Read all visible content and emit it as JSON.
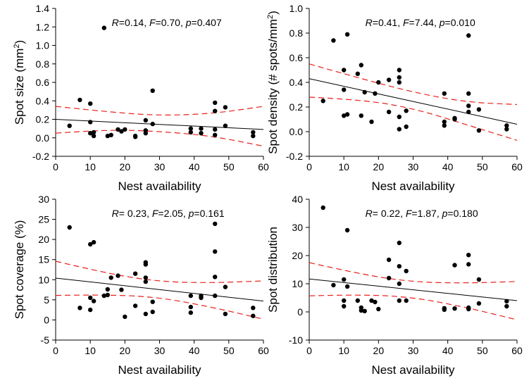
{
  "chart_data": [
    {
      "type": "scatter",
      "xlabel": "Nest availability",
      "ylabel": "Spot size (mm²)",
      "stats": "R=0.14, F=0.70, p=0.407",
      "xlim": [
        0,
        60
      ],
      "ylim": [
        -0.2,
        1.4
      ],
      "xticks": [
        0,
        10,
        20,
        30,
        40,
        50,
        60
      ],
      "yticks": [
        -0.2,
        0.0,
        0.2,
        0.4,
        0.6,
        0.8,
        1.0,
        1.2,
        1.4
      ],
      "ytick_labels": [
        "-0.2",
        "0.0",
        "0.2",
        "0.4",
        "0.6",
        "0.8",
        "1.0",
        "1.2",
        "1.4"
      ],
      "points": [
        {
          "x": 4,
          "y": 0.13
        },
        {
          "x": 7,
          "y": 0.41
        },
        {
          "x": 10,
          "y": 0.37
        },
        {
          "x": 10,
          "y": 0.17
        },
        {
          "x": 10,
          "y": 0.05
        },
        {
          "x": 11,
          "y": 0.02
        },
        {
          "x": 11,
          "y": 0.06
        },
        {
          "x": 14,
          "y": 1.19
        },
        {
          "x": 15,
          "y": 0.02
        },
        {
          "x": 16,
          "y": 0.03
        },
        {
          "x": 18,
          "y": 0.09
        },
        {
          "x": 19,
          "y": 0.07
        },
        {
          "x": 20,
          "y": 0.09
        },
        {
          "x": 23,
          "y": 0.02
        },
        {
          "x": 23,
          "y": 0.01
        },
        {
          "x": 26,
          "y": 0.19
        },
        {
          "x": 26,
          "y": 0.08
        },
        {
          "x": 26,
          "y": 0.05
        },
        {
          "x": 28,
          "y": 0.15
        },
        {
          "x": 28,
          "y": 0.51
        },
        {
          "x": 39,
          "y": 0.1
        },
        {
          "x": 39,
          "y": 0.06
        },
        {
          "x": 42,
          "y": 0.1
        },
        {
          "x": 42,
          "y": 0.05
        },
        {
          "x": 46,
          "y": 0.38
        },
        {
          "x": 46,
          "y": 0.29
        },
        {
          "x": 46,
          "y": 0.09
        },
        {
          "x": 46,
          "y": 0.03
        },
        {
          "x": 49,
          "y": 0.33
        },
        {
          "x": 49,
          "y": 0.13
        },
        {
          "x": 57,
          "y": 0.06
        },
        {
          "x": 57,
          "y": 0.02
        }
      ],
      "fit": [
        [
          0,
          0.2
        ],
        [
          60,
          0.09
        ]
      ],
      "ci_upper": [
        [
          0,
          0.34
        ],
        [
          15,
          0.28
        ],
        [
          30,
          0.24
        ],
        [
          45,
          0.26
        ],
        [
          60,
          0.34
        ]
      ],
      "ci_lower": [
        [
          0,
          0.05
        ],
        [
          15,
          0.09
        ],
        [
          30,
          0.07
        ],
        [
          45,
          0.02
        ],
        [
          60,
          -0.09
        ]
      ]
    },
    {
      "type": "scatter",
      "xlabel": "Nest availability",
      "ylabel": "Spot density (# spots/mm²)",
      "stats": "R=0.41, F=7.44, p=0.010",
      "xlim": [
        0,
        60
      ],
      "ylim": [
        -0.2,
        1.0
      ],
      "xticks": [
        0,
        10,
        20,
        30,
        40,
        50,
        60
      ],
      "yticks": [
        -0.2,
        0.0,
        0.2,
        0.4,
        0.6,
        0.8,
        1.0
      ],
      "ytick_labels": [
        "-0.2",
        "0.0",
        "0.2",
        "0.4",
        "0.6",
        "0.8",
        "1.0"
      ],
      "points": [
        {
          "x": 4,
          "y": 0.25
        },
        {
          "x": 7,
          "y": 0.74
        },
        {
          "x": 10,
          "y": 0.5
        },
        {
          "x": 10,
          "y": 0.34
        },
        {
          "x": 10,
          "y": 0.13
        },
        {
          "x": 11,
          "y": 0.79
        },
        {
          "x": 11,
          "y": 0.14
        },
        {
          "x": 14,
          "y": 0.47
        },
        {
          "x": 15,
          "y": 0.54
        },
        {
          "x": 15,
          "y": 0.13
        },
        {
          "x": 16,
          "y": 0.32
        },
        {
          "x": 18,
          "y": 0.08
        },
        {
          "x": 19,
          "y": 0.31
        },
        {
          "x": 20,
          "y": 0.4
        },
        {
          "x": 23,
          "y": 0.16
        },
        {
          "x": 23,
          "y": 0.42
        },
        {
          "x": 26,
          "y": 0.5
        },
        {
          "x": 26,
          "y": 0.44
        },
        {
          "x": 26,
          "y": 0.4
        },
        {
          "x": 26,
          "y": 0.12
        },
        {
          "x": 26,
          "y": 0.02
        },
        {
          "x": 28,
          "y": 0.17
        },
        {
          "x": 28,
          "y": 0.04
        },
        {
          "x": 39,
          "y": 0.31
        },
        {
          "x": 39,
          "y": 0.08
        },
        {
          "x": 39,
          "y": 0.05
        },
        {
          "x": 42,
          "y": 0.11
        },
        {
          "x": 42,
          "y": 0.1
        },
        {
          "x": 46,
          "y": 0.78
        },
        {
          "x": 46,
          "y": 0.31
        },
        {
          "x": 46,
          "y": 0.21
        },
        {
          "x": 46,
          "y": 0.16
        },
        {
          "x": 49,
          "y": 0.01
        },
        {
          "x": 49,
          "y": 0.18
        },
        {
          "x": 57,
          "y": 0.05
        },
        {
          "x": 57,
          "y": 0.02
        }
      ],
      "fit": [
        [
          0,
          0.43
        ],
        [
          60,
          0.06
        ]
      ],
      "ci_upper": [
        [
          0,
          0.55
        ],
        [
          15,
          0.43
        ],
        [
          30,
          0.32
        ],
        [
          45,
          0.24
        ],
        [
          60,
          0.22
        ]
      ],
      "ci_lower": [
        [
          0,
          0.28
        ],
        [
          15,
          0.26
        ],
        [
          30,
          0.19
        ],
        [
          45,
          0.06
        ],
        [
          60,
          -0.07
        ]
      ]
    },
    {
      "type": "scatter",
      "xlabel": "Nest availability",
      "ylabel": "Spot coverage (%)",
      "stats": "R= 0.23, F=2.05, p=0.161",
      "xlim": [
        0,
        60
      ],
      "ylim": [
        -5,
        30
      ],
      "xticks": [
        0,
        10,
        20,
        30,
        40,
        50,
        60
      ],
      "yticks": [
        -5,
        0,
        5,
        10,
        15,
        20,
        25,
        30
      ],
      "ytick_labels": [
        "-5",
        "0",
        "5",
        "10",
        "15",
        "20",
        "25",
        "30"
      ],
      "points": [
        {
          "x": 4,
          "y": 23
        },
        {
          "x": 7,
          "y": 3
        },
        {
          "x": 10,
          "y": 18.8
        },
        {
          "x": 10,
          "y": 5.5
        },
        {
          "x": 10,
          "y": 2.5
        },
        {
          "x": 11,
          "y": 19.3
        },
        {
          "x": 11,
          "y": 4.7
        },
        {
          "x": 14,
          "y": 6
        },
        {
          "x": 15,
          "y": 6.2
        },
        {
          "x": 15,
          "y": 7.6
        },
        {
          "x": 16,
          "y": 10.5
        },
        {
          "x": 18,
          "y": 11
        },
        {
          "x": 19,
          "y": 7.5
        },
        {
          "x": 20,
          "y": 0.8
        },
        {
          "x": 23,
          "y": 3.5
        },
        {
          "x": 23,
          "y": 11.5
        },
        {
          "x": 26,
          "y": 14.3
        },
        {
          "x": 26,
          "y": 13.8
        },
        {
          "x": 26,
          "y": 10.5
        },
        {
          "x": 26,
          "y": 9.5
        },
        {
          "x": 26,
          "y": 1.5
        },
        {
          "x": 28,
          "y": 4.5
        },
        {
          "x": 28,
          "y": 2
        },
        {
          "x": 39,
          "y": 6
        },
        {
          "x": 39,
          "y": 3.2
        },
        {
          "x": 39,
          "y": 1.8
        },
        {
          "x": 42,
          "y": 6
        },
        {
          "x": 42,
          "y": 5.5
        },
        {
          "x": 46,
          "y": 23.9
        },
        {
          "x": 46,
          "y": 17
        },
        {
          "x": 46,
          "y": 10.7
        },
        {
          "x": 46,
          "y": 6
        },
        {
          "x": 49,
          "y": 8.2
        },
        {
          "x": 49,
          "y": 1.5
        },
        {
          "x": 57,
          "y": 3
        },
        {
          "x": 57,
          "y": 1
        }
      ],
      "fit": [
        [
          0,
          10.4
        ],
        [
          60,
          4.7
        ]
      ],
      "ci_upper": [
        [
          0,
          14.6
        ],
        [
          15,
          11.5
        ],
        [
          30,
          9.5
        ],
        [
          45,
          9.2
        ],
        [
          60,
          9.7
        ]
      ],
      "ci_lower": [
        [
          0,
          6.1
        ],
        [
          15,
          6.3
        ],
        [
          30,
          5.6
        ],
        [
          45,
          3.2
        ],
        [
          60,
          0.2
        ]
      ]
    },
    {
      "type": "scatter",
      "xlabel": "Nest availability",
      "ylabel": "Spot distribution",
      "stats": "R= 0.22, F=1.87, p=0.180",
      "xlim": [
        0,
        60
      ],
      "ylim": [
        -10,
        40
      ],
      "xticks": [
        0,
        10,
        20,
        30,
        40,
        50,
        60
      ],
      "yticks": [
        -10,
        0,
        10,
        20,
        30,
        40
      ],
      "ytick_labels": [
        "-10",
        "0",
        "10",
        "20",
        "30",
        "40"
      ],
      "points": [
        {
          "x": 4,
          "y": 37
        },
        {
          "x": 7,
          "y": 9.5
        },
        {
          "x": 10,
          "y": 11.5
        },
        {
          "x": 10,
          "y": 4
        },
        {
          "x": 10,
          "y": 2
        },
        {
          "x": 11,
          "y": 29
        },
        {
          "x": 11,
          "y": 9
        },
        {
          "x": 14,
          "y": 4
        },
        {
          "x": 15,
          "y": 1.5
        },
        {
          "x": 15,
          "y": 0.5
        },
        {
          "x": 16,
          "y": 0.3
        },
        {
          "x": 18,
          "y": 4
        },
        {
          "x": 19,
          "y": 3.5
        },
        {
          "x": 20,
          "y": 1
        },
        {
          "x": 23,
          "y": 18.5
        },
        {
          "x": 23,
          "y": 12
        },
        {
          "x": 26,
          "y": 24.5
        },
        {
          "x": 26,
          "y": 16.2
        },
        {
          "x": 26,
          "y": 10
        },
        {
          "x": 26,
          "y": 4
        },
        {
          "x": 28,
          "y": 14.5
        },
        {
          "x": 28,
          "y": 4
        },
        {
          "x": 39,
          "y": 1.3
        },
        {
          "x": 39,
          "y": 0.8
        },
        {
          "x": 42,
          "y": 16.6
        },
        {
          "x": 42,
          "y": 1.2
        },
        {
          "x": 46,
          "y": 20.2
        },
        {
          "x": 46,
          "y": 16.9
        },
        {
          "x": 46,
          "y": 1
        },
        {
          "x": 46,
          "y": 1.5
        },
        {
          "x": 49,
          "y": 11.5
        },
        {
          "x": 49,
          "y": 3
        },
        {
          "x": 57,
          "y": 3.8
        },
        {
          "x": 57,
          "y": 2
        }
      ],
      "fit": [
        [
          0,
          11.7
        ],
        [
          60,
          4
        ]
      ],
      "ci_upper": [
        [
          0,
          17.5
        ],
        [
          15,
          13.3
        ],
        [
          30,
          10.6
        ],
        [
          45,
          10.2
        ],
        [
          60,
          10.8
        ]
      ],
      "ci_lower": [
        [
          0,
          5.7
        ],
        [
          15,
          6.2
        ],
        [
          30,
          5.2
        ],
        [
          45,
          1.7
        ],
        [
          60,
          -2.8
        ]
      ]
    }
  ]
}
